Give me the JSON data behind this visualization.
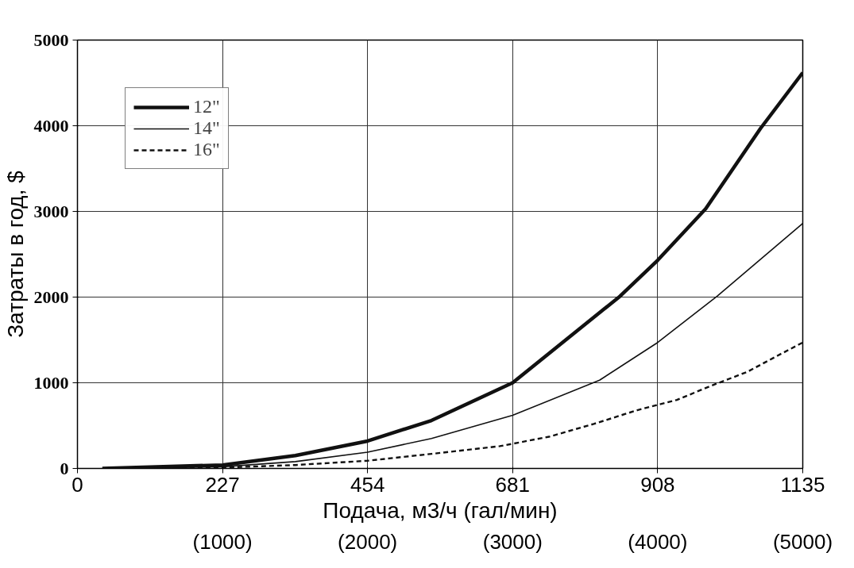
{
  "chart_data": {
    "type": "line",
    "xlabel": "Подача, м3/ч (гал/мин)",
    "ylabel": "Затраты в год, $",
    "xlim": [
      0,
      1135
    ],
    "ylim": [
      0,
      5000
    ],
    "xticks": [
      0,
      227,
      454,
      681,
      908,
      1135
    ],
    "x2lim": [
      0,
      5000
    ],
    "x2ticks": [
      {
        "value": 1000,
        "label": "(1000)"
      },
      {
        "value": 2000,
        "label": "(2000)"
      },
      {
        "value": 3000,
        "label": "(3000)"
      },
      {
        "value": 4000,
        "label": "(4000)"
      },
      {
        "value": 5000,
        "label": "(5000)"
      }
    ],
    "yticks": [
      0,
      1000,
      2000,
      3000,
      4000,
      5000
    ],
    "grid": true,
    "legend": "top left",
    "series": [
      {
        "name": "12\"",
        "color": "#111111",
        "line_style": "solid",
        "x": [
          39,
          227,
          341,
          454,
          554,
          681,
          849,
          908,
          983,
          1069,
          1135
        ],
        "values": [
          0,
          40,
          150,
          320,
          560,
          1000,
          2010,
          2430,
          3030,
          3970,
          4620
        ]
      },
      {
        "name": "14\"",
        "color": "#111111",
        "line_style": "solid",
        "x": [
          39,
          227,
          341,
          454,
          554,
          681,
          817,
          908,
          1001,
          1135
        ],
        "values": [
          0,
          20,
          80,
          190,
          350,
          620,
          1030,
          1470,
          2010,
          2860
        ]
      },
      {
        "name": "16\"",
        "color": "#111111",
        "line_style": "dashed",
        "x": [
          39,
          227,
          341,
          454,
          554,
          661,
          738,
          808,
          876,
          938,
          990,
          1049,
          1094,
          1135
        ],
        "values": [
          0,
          10,
          40,
          90,
          170,
          260,
          370,
          520,
          680,
          800,
          960,
          1130,
          1310,
          1470
        ]
      }
    ]
  }
}
